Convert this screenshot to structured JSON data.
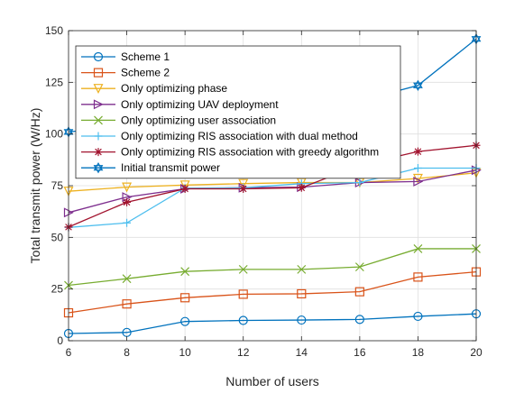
{
  "chart_data": {
    "type": "line",
    "xlabel": "Number of users",
    "ylabel": "Total transmit power (W/Hz)",
    "xlim": [
      6,
      20
    ],
    "ylim": [
      0,
      150
    ],
    "xticks": [
      6,
      8,
      10,
      12,
      14,
      16,
      18,
      20
    ],
    "yticks": [
      0,
      25,
      50,
      75,
      100,
      125,
      150
    ],
    "grid": true,
    "legend_position": "top-left",
    "x": [
      6,
      8,
      10,
      12,
      14,
      16,
      18,
      20
    ],
    "series": [
      {
        "name": "Scheme 1",
        "color": "#0072BD",
        "marker": "circle",
        "values": [
          3.5,
          4,
          9.3,
          9.8,
          10,
          10.3,
          11.8,
          13
        ]
      },
      {
        "name": "Scheme 2",
        "color": "#D95319",
        "marker": "square",
        "values": [
          13.5,
          17.8,
          20.8,
          22.5,
          22.7,
          23.7,
          30.8,
          33.3
        ]
      },
      {
        "name": "Only optimizing phase",
        "color": "#EDB120",
        "marker": "triangle-down",
        "values": [
          72.3,
          74.3,
          75.3,
          76,
          76.5,
          76.5,
          78.5,
          81.2
        ]
      },
      {
        "name": "Only optimizing UAV deployment",
        "color": "#7E2F8E",
        "marker": "triangle-right",
        "values": [
          62,
          69.5,
          73.5,
          74,
          74.3,
          76.5,
          77,
          82.5
        ]
      },
      {
        "name": "Only optimizing user association",
        "color": "#77AC30",
        "marker": "x",
        "values": [
          26.8,
          30,
          33.5,
          34.5,
          34.5,
          35.7,
          44.5,
          44.5
        ]
      },
      {
        "name": "Only optimizing RIS association with dual method",
        "color": "#4DBEEE",
        "marker": "plus",
        "values": [
          54.8,
          57,
          73.8,
          74,
          76,
          76.5,
          83.5,
          83.5
        ]
      },
      {
        "name": "Only optimizing RIS association with greedy algorithm",
        "color": "#A2142F",
        "marker": "asterisk",
        "values": [
          55,
          67,
          73.5,
          73.5,
          74,
          85,
          91.5,
          94.5
        ]
      },
      {
        "name": "Initial transmit power",
        "color": "#0072BD",
        "marker": "hexagram",
        "values": [
          101,
          104,
          106,
          109,
          112,
          116,
          123.5,
          146
        ]
      }
    ]
  }
}
